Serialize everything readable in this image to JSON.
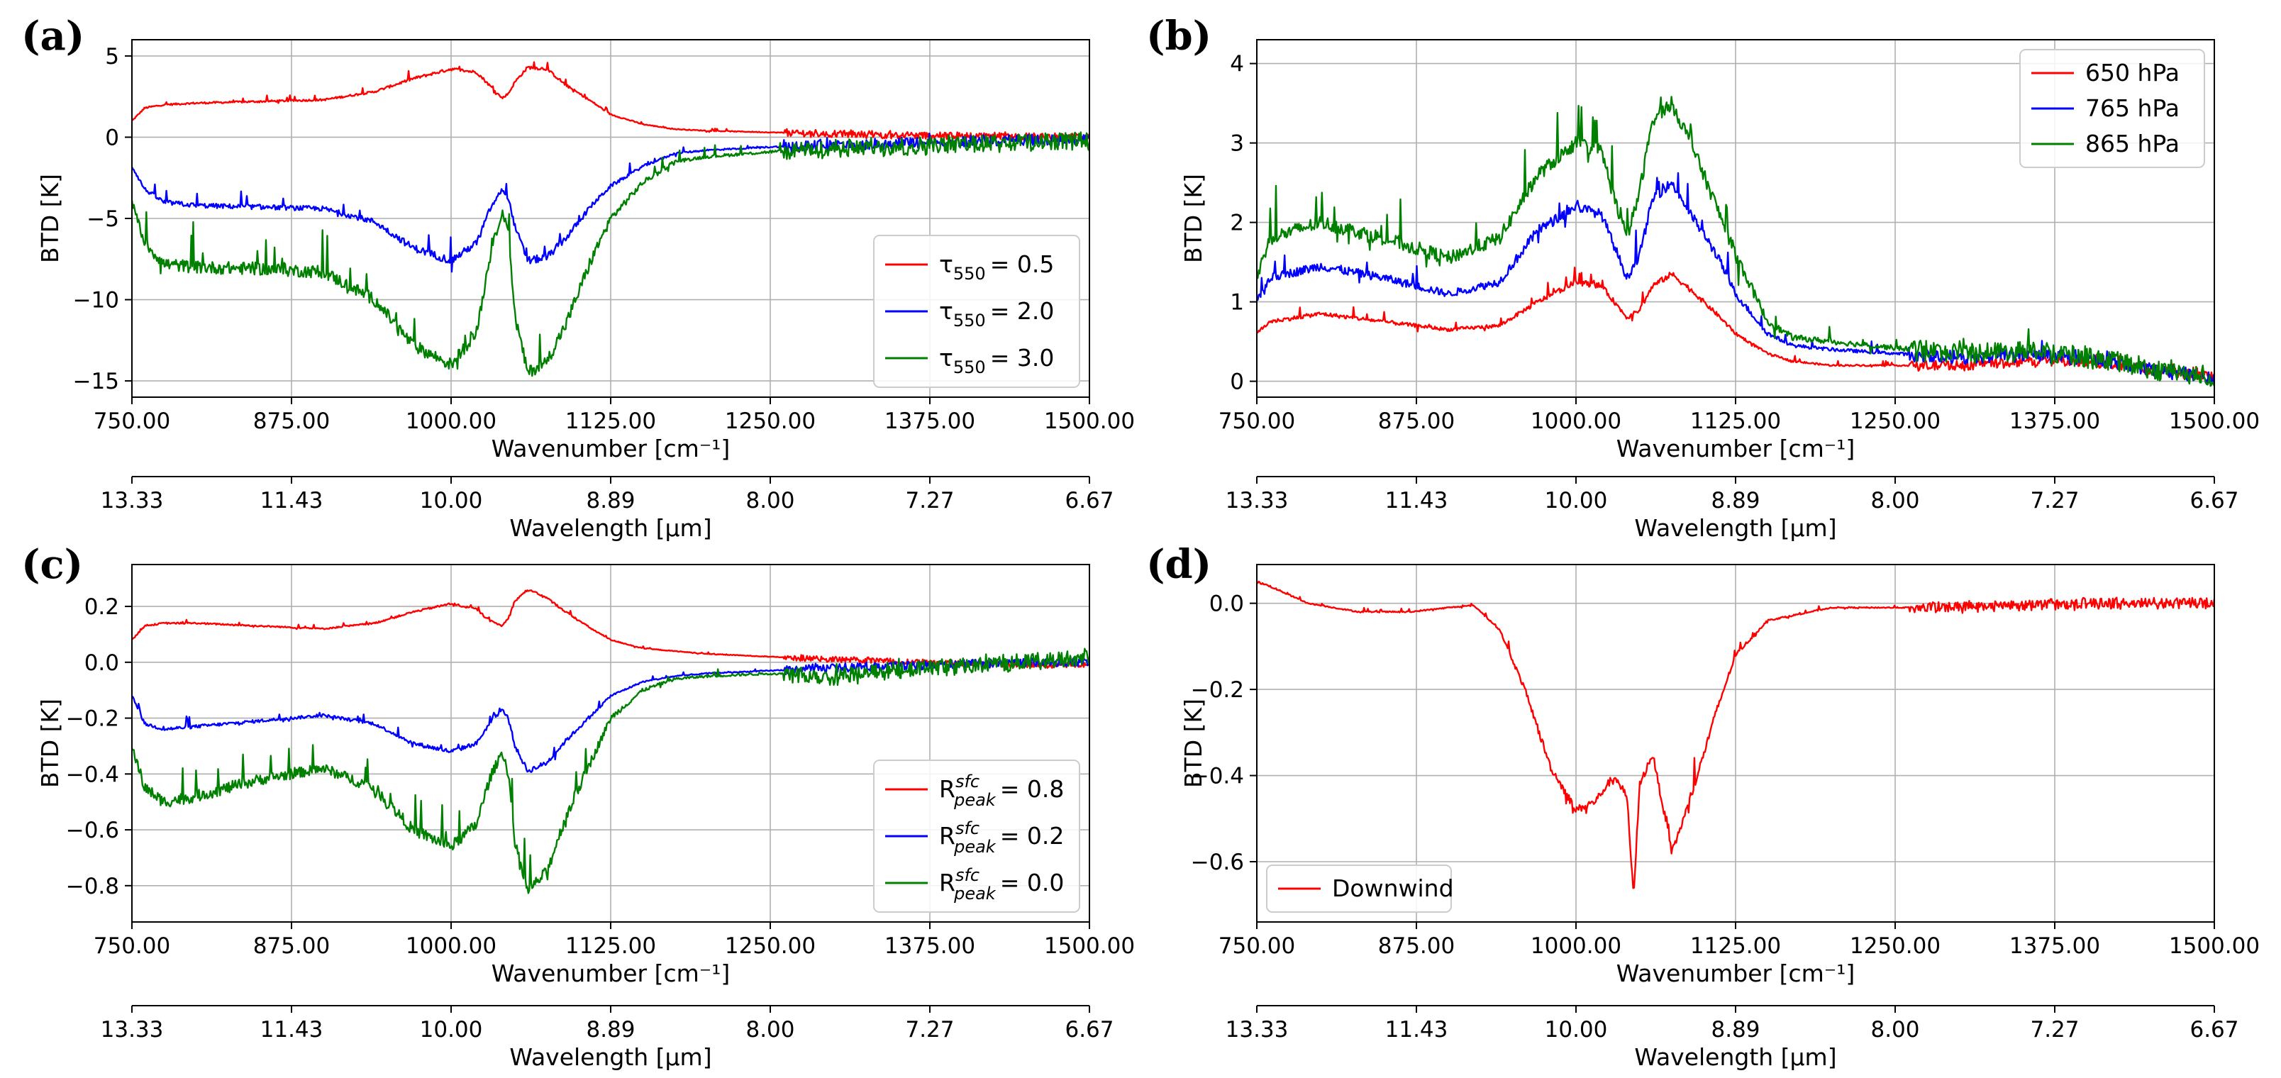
{
  "chart_data": [
    {
      "panel": "(a)",
      "type": "line",
      "xlabel": "Wavenumber [cm⁻¹]",
      "ylabel": "BTD [K]",
      "xlim": [
        750,
        1500
      ],
      "ylim": [
        -16,
        6
      ],
      "xticks": [
        750,
        875,
        1000,
        1125,
        1250,
        1375,
        1500
      ],
      "xtick_labels": [
        "750.00",
        "875.00",
        "1000.00",
        "1125.00",
        "1250.00",
        "1375.00",
        "1500.00"
      ],
      "yticks": [
        5,
        0,
        -5,
        -10,
        -15
      ],
      "ytick_labels": [
        "5",
        "0",
        "−5",
        "−10",
        "−15"
      ],
      "secondary_xlabel": "Wavelength [µm]",
      "secondary_xtick_labels": [
        "13.33",
        "11.43",
        "10.00",
        "8.89",
        "8.00",
        "7.27",
        "6.67"
      ],
      "legend_position": "lower-right",
      "series": [
        {
          "name": "τ₅₅₀ = 0.5",
          "legend_base": "τ",
          "legend_sub": "550",
          "legend_sup": "",
          "legend_value": "= 0.5",
          "color": "#ff0000",
          "x": [
            750,
            760,
            775,
            800,
            850,
            900,
            940,
            970,
            1000,
            1020,
            1030,
            1040,
            1045,
            1050,
            1060,
            1075,
            1090,
            1110,
            1125,
            1150,
            1175,
            1200,
            1250,
            1300,
            1375,
            1450,
            1500
          ],
          "y": [
            1.0,
            1.8,
            2.0,
            2.1,
            2.2,
            2.3,
            2.8,
            3.6,
            4.2,
            4.0,
            3.2,
            2.4,
            2.7,
            3.4,
            4.3,
            4.2,
            3.2,
            2.2,
            1.4,
            0.8,
            0.5,
            0.4,
            0.3,
            0.2,
            0.1,
            0.05,
            0.0
          ],
          "noise": 0.9
        },
        {
          "name": "τ₅₅₀ = 2.0",
          "legend_base": "τ",
          "legend_sub": "550",
          "legend_sup": "",
          "legend_value": "= 2.0",
          "color": "#0000ff",
          "x": [
            750,
            760,
            775,
            800,
            850,
            900,
            940,
            970,
            1000,
            1020,
            1030,
            1040,
            1045,
            1050,
            1060,
            1075,
            1090,
            1110,
            1125,
            1150,
            1175,
            1200,
            1250,
            1300,
            1375,
            1450,
            1500
          ],
          "y": [
            -1.8,
            -3.2,
            -4.0,
            -4.2,
            -4.3,
            -4.4,
            -5.2,
            -6.8,
            -7.6,
            -6.5,
            -4.5,
            -3.2,
            -3.8,
            -5.5,
            -7.6,
            -7.4,
            -6.2,
            -4.2,
            -3.0,
            -1.8,
            -1.0,
            -0.8,
            -0.6,
            -0.5,
            -0.3,
            -0.2,
            -0.1
          ],
          "noise": 1.4
        },
        {
          "name": "τ₅₅₀ = 3.0",
          "legend_base": "τ",
          "legend_sub": "550",
          "legend_sup": "",
          "legend_value": "= 3.0",
          "color": "#008000",
          "x": [
            750,
            760,
            775,
            800,
            850,
            900,
            940,
            970,
            1000,
            1020,
            1030,
            1040,
            1045,
            1050,
            1060,
            1075,
            1090,
            1110,
            1125,
            1150,
            1175,
            1200,
            1250,
            1300,
            1375,
            1450,
            1500
          ],
          "y": [
            -4.0,
            -6.5,
            -7.8,
            -8.0,
            -8.1,
            -8.3,
            -10.0,
            -12.8,
            -14.0,
            -12.0,
            -7.5,
            -4.5,
            -6.0,
            -11.0,
            -14.5,
            -13.8,
            -11.5,
            -7.5,
            -5.0,
            -2.8,
            -1.5,
            -1.2,
            -0.9,
            -0.7,
            -0.5,
            -0.3,
            -0.2
          ],
          "noise": 2.2
        }
      ]
    },
    {
      "panel": "(b)",
      "type": "line",
      "xlabel": "Wavenumber [cm⁻¹]",
      "ylabel": "BTD [K]",
      "xlim": [
        750,
        1500
      ],
      "ylim": [
        -0.2,
        4.3
      ],
      "xticks": [
        750,
        875,
        1000,
        1125,
        1250,
        1375,
        1500
      ],
      "xtick_labels": [
        "750.00",
        "875.00",
        "1000.00",
        "1125.00",
        "1250.00",
        "1375.00",
        "1500.00"
      ],
      "yticks": [
        4,
        3,
        2,
        1,
        0
      ],
      "ytick_labels": [
        "4",
        "3",
        "2",
        "1",
        "0"
      ],
      "secondary_xlabel": "Wavelength [µm]",
      "secondary_xtick_labels": [
        "13.33",
        "11.43",
        "10.00",
        "8.89",
        "8.00",
        "7.27",
        "6.67"
      ],
      "legend_position": "upper-right",
      "series": [
        {
          "name": "650 hPa",
          "legend_base": "650 hPa",
          "legend_sub": "",
          "legend_sup": "",
          "legend_value": "",
          "color": "#ff0000",
          "x": [
            750,
            760,
            800,
            850,
            900,
            940,
            970,
            1000,
            1020,
            1030,
            1040,
            1050,
            1060,
            1075,
            1090,
            1110,
            1125,
            1150,
            1170,
            1200,
            1250,
            1300,
            1350,
            1400,
            1450,
            1500
          ],
          "y": [
            0.6,
            0.75,
            0.85,
            0.75,
            0.65,
            0.7,
            1.0,
            1.25,
            1.2,
            1.0,
            0.8,
            0.9,
            1.2,
            1.35,
            1.15,
            0.85,
            0.6,
            0.35,
            0.25,
            0.2,
            0.2,
            0.2,
            0.25,
            0.25,
            0.15,
            0.05
          ],
          "noise": 0.25
        },
        {
          "name": "765 hPa",
          "legend_base": "765 hPa",
          "legend_sub": "",
          "legend_sup": "",
          "legend_value": "",
          "color": "#0000ff",
          "x": [
            750,
            760,
            800,
            850,
            900,
            940,
            970,
            1000,
            1020,
            1030,
            1040,
            1050,
            1060,
            1075,
            1090,
            1110,
            1125,
            1150,
            1170,
            1200,
            1250,
            1300,
            1350,
            1400,
            1450,
            1500
          ],
          "y": [
            1.0,
            1.3,
            1.45,
            1.3,
            1.1,
            1.25,
            1.9,
            2.2,
            2.1,
            1.7,
            1.3,
            1.6,
            2.3,
            2.5,
            2.1,
            1.6,
            1.1,
            0.6,
            0.45,
            0.4,
            0.35,
            0.3,
            0.35,
            0.3,
            0.15,
            0.05
          ],
          "noise": 0.35
        },
        {
          "name": "865 hPa",
          "legend_base": "865 hPa",
          "legend_sub": "",
          "legend_sup": "",
          "legend_value": "",
          "color": "#008000",
          "x": [
            750,
            760,
            800,
            850,
            900,
            940,
            970,
            1000,
            1020,
            1030,
            1040,
            1050,
            1060,
            1075,
            1090,
            1110,
            1125,
            1150,
            1170,
            1200,
            1250,
            1300,
            1350,
            1400,
            1450,
            1500
          ],
          "y": [
            1.3,
            1.8,
            2.0,
            1.8,
            1.55,
            1.8,
            2.6,
            3.0,
            2.9,
            2.3,
            1.8,
            2.4,
            3.3,
            3.5,
            3.0,
            2.2,
            1.6,
            0.75,
            0.55,
            0.5,
            0.42,
            0.35,
            0.4,
            0.3,
            0.15,
            0.05
          ],
          "noise": 0.5
        }
      ]
    },
    {
      "panel": "(c)",
      "type": "line",
      "xlabel": "Wavenumber [cm⁻¹]",
      "ylabel": "BTD [K]",
      "xlim": [
        750,
        1500
      ],
      "ylim": [
        -0.93,
        0.35
      ],
      "xticks": [
        750,
        875,
        1000,
        1125,
        1250,
        1375,
        1500
      ],
      "xtick_labels": [
        "750.00",
        "875.00",
        "1000.00",
        "1125.00",
        "1250.00",
        "1375.00",
        "1500.00"
      ],
      "yticks": [
        0.2,
        0.0,
        -0.2,
        -0.4,
        -0.6,
        -0.8
      ],
      "ytick_labels": [
        "0.2",
        "0.0",
        "−0.2",
        "−0.4",
        "−0.6",
        "−0.8"
      ],
      "secondary_xlabel": "Wavelength [µm]",
      "secondary_xtick_labels": [
        "13.33",
        "11.43",
        "10.00",
        "8.89",
        "8.00",
        "7.27",
        "6.67"
      ],
      "legend_position": "lower-right",
      "series": [
        {
          "name": "R^sfc_peak = 0.8",
          "legend_base": "R",
          "legend_sub": "peak",
          "legend_sup": "sfc",
          "legend_value": "= 0.8",
          "color": "#ff0000",
          "x": [
            750,
            760,
            775,
            800,
            850,
            900,
            940,
            970,
            1000,
            1020,
            1030,
            1040,
            1045,
            1050,
            1060,
            1075,
            1090,
            1110,
            1125,
            1150,
            1175,
            1200,
            1250,
            1300,
            1375,
            1450,
            1500
          ],
          "y": [
            0.08,
            0.13,
            0.14,
            0.14,
            0.13,
            0.12,
            0.14,
            0.18,
            0.21,
            0.19,
            0.15,
            0.13,
            0.16,
            0.22,
            0.26,
            0.23,
            0.18,
            0.12,
            0.08,
            0.05,
            0.04,
            0.03,
            0.02,
            0.01,
            0.0,
            -0.01,
            -0.01
          ],
          "noise": 0.04
        },
        {
          "name": "R^sfc_peak = 0.2",
          "legend_base": "R",
          "legend_sub": "peak",
          "legend_sup": "sfc",
          "legend_value": "= 0.2",
          "color": "#0000ff",
          "x": [
            750,
            760,
            775,
            800,
            850,
            900,
            940,
            970,
            1000,
            1020,
            1030,
            1040,
            1045,
            1050,
            1060,
            1075,
            1090,
            1110,
            1125,
            1150,
            1175,
            1200,
            1250,
            1300,
            1375,
            1450,
            1500
          ],
          "y": [
            -0.12,
            -0.22,
            -0.24,
            -0.23,
            -0.21,
            -0.19,
            -0.22,
            -0.29,
            -0.32,
            -0.29,
            -0.22,
            -0.17,
            -0.2,
            -0.3,
            -0.39,
            -0.36,
            -0.28,
            -0.19,
            -0.12,
            -0.07,
            -0.05,
            -0.04,
            -0.03,
            -0.02,
            -0.01,
            0.0,
            0.0
          ],
          "noise": 0.06
        },
        {
          "name": "R^sfc_peak = 0.0",
          "legend_base": "R",
          "legend_sub": "peak",
          "legend_sup": "sfc",
          "legend_value": "= 0.0",
          "color": "#008000",
          "x": [
            750,
            760,
            775,
            800,
            850,
            900,
            940,
            970,
            1000,
            1020,
            1030,
            1040,
            1045,
            1050,
            1060,
            1075,
            1090,
            1110,
            1125,
            1150,
            1175,
            1200,
            1250,
            1300,
            1375,
            1450,
            1500
          ],
          "y": [
            -0.3,
            -0.45,
            -0.5,
            -0.48,
            -0.42,
            -0.38,
            -0.45,
            -0.6,
            -0.66,
            -0.58,
            -0.42,
            -0.32,
            -0.4,
            -0.65,
            -0.82,
            -0.75,
            -0.55,
            -0.35,
            -0.2,
            -0.1,
            -0.06,
            -0.05,
            -0.04,
            -0.05,
            -0.02,
            0.0,
            0.02
          ],
          "noise": 0.12
        }
      ]
    },
    {
      "panel": "(d)",
      "type": "line",
      "xlabel": "Wavenumber [cm⁻¹]",
      "ylabel": "BTD [K]",
      "xlim": [
        750,
        1500
      ],
      "ylim": [
        -0.74,
        0.09
      ],
      "xticks": [
        750,
        875,
        1000,
        1125,
        1250,
        1375,
        1500
      ],
      "xtick_labels": [
        "750.00",
        "875.00",
        "1000.00",
        "1125.00",
        "1250.00",
        "1375.00",
        "1500.00"
      ],
      "yticks": [
        0.0,
        -0.2,
        -0.4,
        -0.6
      ],
      "ytick_labels": [
        "0.0",
        "−0.2",
        "−0.4",
        "−0.6"
      ],
      "secondary_xlabel": "Wavelength [µm]",
      "secondary_xtick_labels": [
        "13.33",
        "11.43",
        "10.00",
        "8.89",
        "8.00",
        "7.27",
        "6.67"
      ],
      "legend_position": "lower-left",
      "series": [
        {
          "name": "Downwind",
          "legend_base": "Downwind",
          "legend_sub": "",
          "legend_sup": "",
          "legend_value": "",
          "color": "#ff0000",
          "x": [
            750,
            760,
            790,
            830,
            870,
            900,
            920,
            940,
            960,
            980,
            1000,
            1015,
            1030,
            1040,
            1045,
            1050,
            1060,
            1070,
            1075,
            1090,
            1110,
            1125,
            1150,
            1200,
            1300,
            1400,
            1500
          ],
          "y": [
            0.05,
            0.04,
            0.0,
            -0.02,
            -0.02,
            -0.01,
            -0.005,
            -0.06,
            -0.2,
            -0.38,
            -0.48,
            -0.46,
            -0.4,
            -0.45,
            -0.68,
            -0.42,
            -0.35,
            -0.5,
            -0.58,
            -0.45,
            -0.25,
            -0.12,
            -0.04,
            -0.01,
            -0.01,
            0.0,
            0.0
          ],
          "noise": 0.05
        }
      ]
    }
  ]
}
